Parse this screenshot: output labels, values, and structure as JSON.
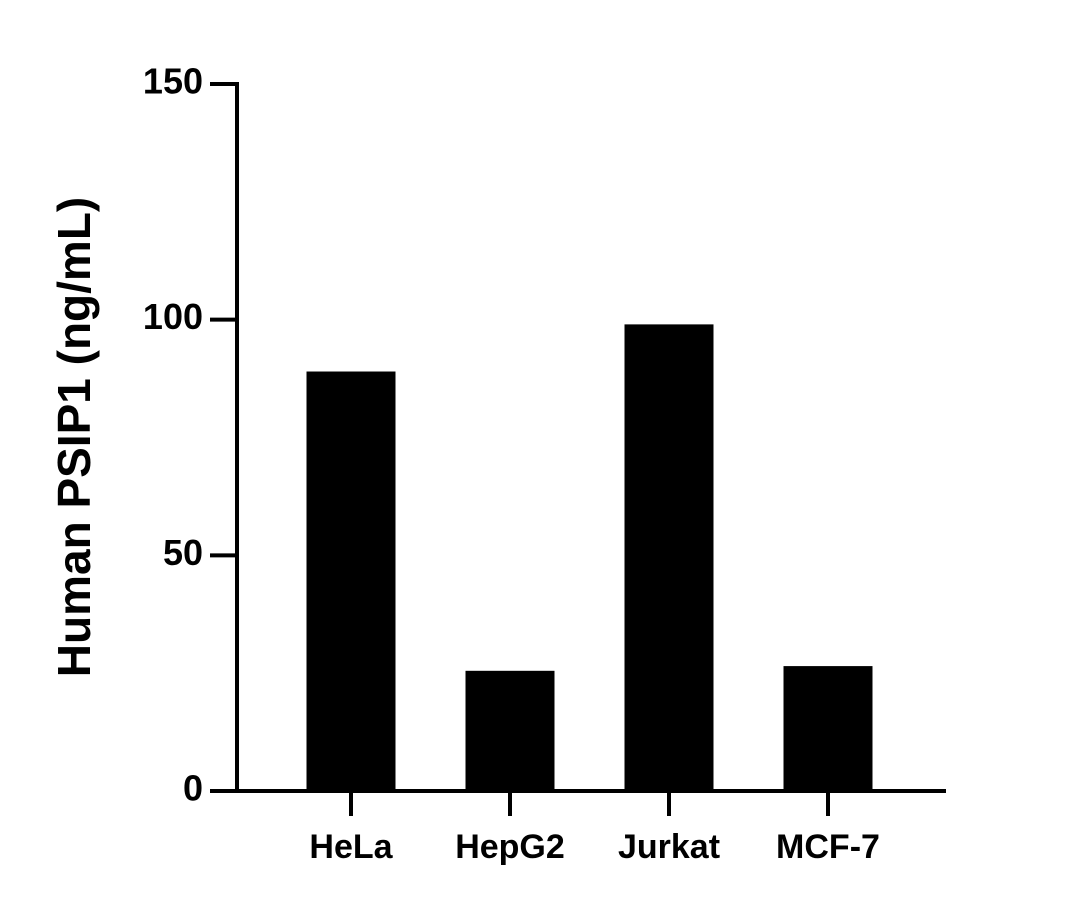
{
  "chart_data": {
    "type": "bar",
    "y_label": "Human PSIP1 (ng/mL)",
    "categories": [
      "HeLa",
      "HepG2",
      "Jurkat",
      "MCF-7"
    ],
    "values": [
      89,
      25.5,
      99,
      26.5
    ],
    "color": "#000000",
    "ylim": [
      0,
      150
    ],
    "yticks": [
      0,
      50,
      100,
      150
    ],
    "grid": false
  }
}
